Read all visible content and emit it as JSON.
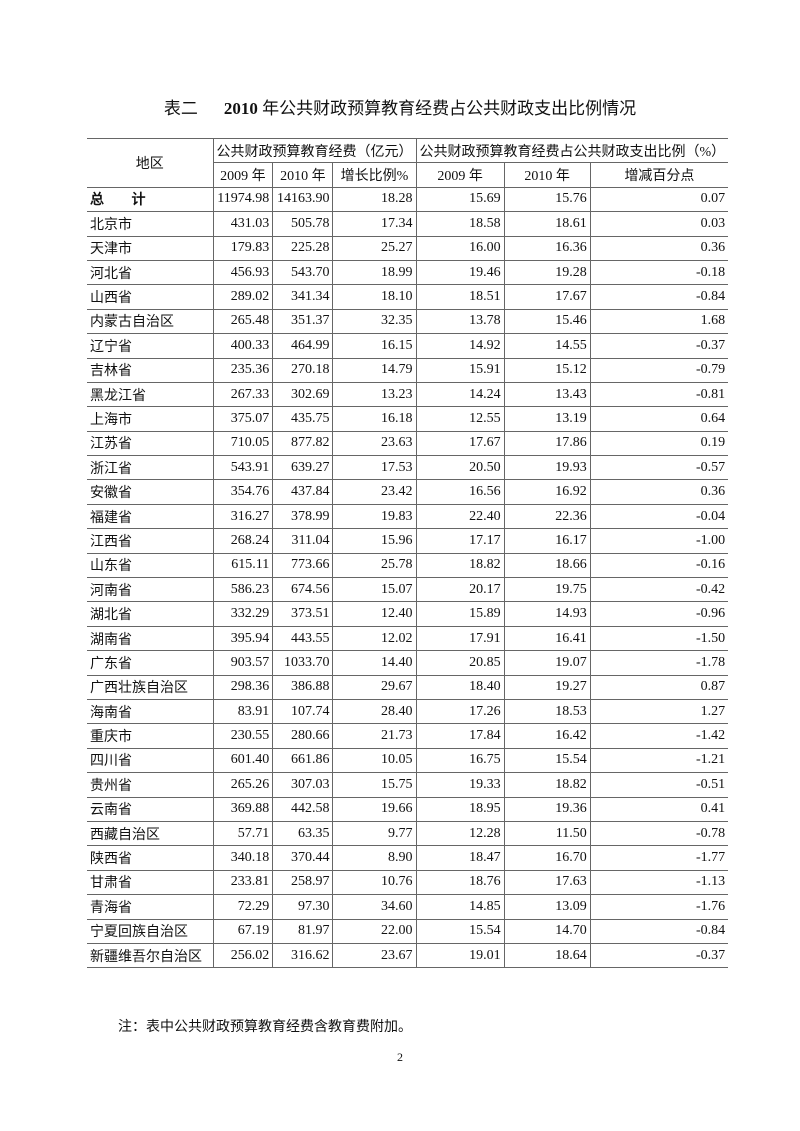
{
  "title": {
    "table_no": "表二",
    "year": "2010",
    "text": "年公共财政预算教育经费占公共财政支出比例情况"
  },
  "table": {
    "header": {
      "region": "地区",
      "group1": "公共财政预算教育经费（亿元）",
      "group2": "公共财政预算教育经费占公共财政支出比例（%）",
      "sub": [
        "2009 年",
        "2010 年",
        "增长比例%",
        "2009 年",
        "2010 年",
        "增减百分点"
      ]
    },
    "rows": [
      [
        "总 计",
        "11974.98",
        "14163.90",
        "18.28",
        "15.69",
        "15.76",
        "0.07"
      ],
      [
        "北京市",
        "431.03",
        "505.78",
        "17.34",
        "18.58",
        "18.61",
        "0.03"
      ],
      [
        "天津市",
        "179.83",
        "225.28",
        "25.27",
        "16.00",
        "16.36",
        "0.36"
      ],
      [
        "河北省",
        "456.93",
        "543.70",
        "18.99",
        "19.46",
        "19.28",
        "-0.18"
      ],
      [
        "山西省",
        "289.02",
        "341.34",
        "18.10",
        "18.51",
        "17.67",
        "-0.84"
      ],
      [
        "内蒙古自治区",
        "265.48",
        "351.37",
        "32.35",
        "13.78",
        "15.46",
        "1.68"
      ],
      [
        "辽宁省",
        "400.33",
        "464.99",
        "16.15",
        "14.92",
        "14.55",
        "-0.37"
      ],
      [
        "吉林省",
        "235.36",
        "270.18",
        "14.79",
        "15.91",
        "15.12",
        "-0.79"
      ],
      [
        "黑龙江省",
        "267.33",
        "302.69",
        "13.23",
        "14.24",
        "13.43",
        "-0.81"
      ],
      [
        "上海市",
        "375.07",
        "435.75",
        "16.18",
        "12.55",
        "13.19",
        "0.64"
      ],
      [
        "江苏省",
        "710.05",
        "877.82",
        "23.63",
        "17.67",
        "17.86",
        "0.19"
      ],
      [
        "浙江省",
        "543.91",
        "639.27",
        "17.53",
        "20.50",
        "19.93",
        "-0.57"
      ],
      [
        "安徽省",
        "354.76",
        "437.84",
        "23.42",
        "16.56",
        "16.92",
        "0.36"
      ],
      [
        "福建省",
        "316.27",
        "378.99",
        "19.83",
        "22.40",
        "22.36",
        "-0.04"
      ],
      [
        "江西省",
        "268.24",
        "311.04",
        "15.96",
        "17.17",
        "16.17",
        "-1.00"
      ],
      [
        "山东省",
        "615.11",
        "773.66",
        "25.78",
        "18.82",
        "18.66",
        "-0.16"
      ],
      [
        "河南省",
        "586.23",
        "674.56",
        "15.07",
        "20.17",
        "19.75",
        "-0.42"
      ],
      [
        "湖北省",
        "332.29",
        "373.51",
        "12.40",
        "15.89",
        "14.93",
        "-0.96"
      ],
      [
        "湖南省",
        "395.94",
        "443.55",
        "12.02",
        "17.91",
        "16.41",
        "-1.50"
      ],
      [
        "广东省",
        "903.57",
        "1033.70",
        "14.40",
        "20.85",
        "19.07",
        "-1.78"
      ],
      [
        "广西壮族自治区",
        "298.36",
        "386.88",
        "29.67",
        "18.40",
        "19.27",
        "0.87"
      ],
      [
        "海南省",
        "83.91",
        "107.74",
        "28.40",
        "17.26",
        "18.53",
        "1.27"
      ],
      [
        "重庆市",
        "230.55",
        "280.66",
        "21.73",
        "17.84",
        "16.42",
        "-1.42"
      ],
      [
        "四川省",
        "601.40",
        "661.86",
        "10.05",
        "16.75",
        "15.54",
        "-1.21"
      ],
      [
        "贵州省",
        "265.26",
        "307.03",
        "15.75",
        "19.33",
        "18.82",
        "-0.51"
      ],
      [
        "云南省",
        "369.88",
        "442.58",
        "19.66",
        "18.95",
        "19.36",
        "0.41"
      ],
      [
        "西藏自治区",
        "57.71",
        "63.35",
        "9.77",
        "12.28",
        "11.50",
        "-0.78"
      ],
      [
        "陕西省",
        "340.18",
        "370.44",
        "8.90",
        "18.47",
        "16.70",
        "-1.77"
      ],
      [
        "甘肃省",
        "233.81",
        "258.97",
        "10.76",
        "18.76",
        "17.63",
        "-1.13"
      ],
      [
        "青海省",
        "72.29",
        "97.30",
        "34.60",
        "14.85",
        "13.09",
        "-1.76"
      ],
      [
        "宁夏回族自治区",
        "67.19",
        "81.97",
        "22.00",
        "15.54",
        "14.70",
        "-0.84"
      ],
      [
        "新疆维吾尔自治区",
        "256.02",
        "316.62",
        "23.67",
        "19.01",
        "18.64",
        "-0.37"
      ]
    ]
  },
  "note": "注：表中公共财政预算教育经费含教育费附加。",
  "page_number": "2"
}
